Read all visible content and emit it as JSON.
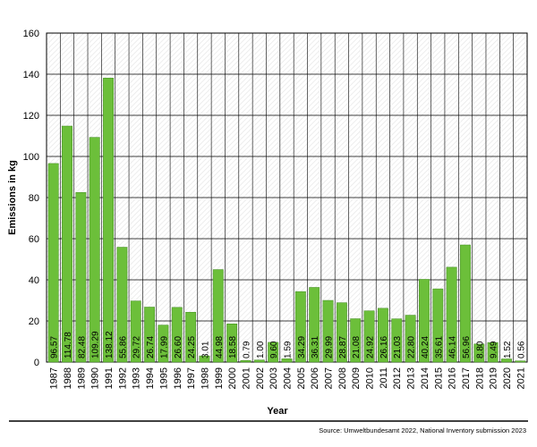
{
  "chart_data": {
    "type": "bar",
    "ylabel": "Emissions in kg",
    "xlabel": "Year",
    "ylim": [
      0,
      160
    ],
    "yticks": [
      0,
      20,
      40,
      60,
      80,
      100,
      120,
      140,
      160
    ],
    "grid": true,
    "categories": [
      "1987",
      "1988",
      "1989",
      "1990",
      "1991",
      "1992",
      "1993",
      "1994",
      "1995",
      "1996",
      "1997",
      "1998",
      "1999",
      "2000",
      "2001",
      "2002",
      "2003",
      "2004",
      "2005",
      "2006",
      "2007",
      "2008",
      "2009",
      "2010",
      "2011",
      "2012",
      "2013",
      "2014",
      "2015",
      "2016",
      "2017",
      "2018",
      "2019",
      "2020",
      "2021"
    ],
    "values": [
      96.57,
      114.78,
      82.48,
      109.29,
      138.12,
      55.86,
      29.72,
      26.74,
      17.99,
      26.6,
      24.25,
      3.01,
      44.98,
      18.58,
      0.79,
      1.0,
      9.6,
      1.59,
      34.29,
      36.31,
      29.99,
      28.87,
      21.08,
      24.92,
      26.16,
      21.03,
      22.8,
      40.24,
      35.61,
      46.14,
      56.96,
      8.8,
      9.49,
      1.52,
      0.56
    ],
    "data_labels": [
      "96.57",
      "114.78",
      "82.48",
      "109.29",
      "138.12",
      "55.86",
      "29.72",
      "26.74",
      "17.99",
      "26.60",
      "24.25",
      "3.01",
      "44.98",
      "18.58",
      "0.79",
      "1.00",
      "9.60",
      "1.59",
      "34.29",
      "36.31",
      "29.99",
      "28.87",
      "21.08",
      "24.92",
      "26.16",
      "21.03",
      "22.80",
      "40.24",
      "35.61",
      "46.14",
      "56.96",
      "8.80",
      "9.49",
      "1.52",
      "0.56"
    ],
    "bar_color": "#6cbf3a",
    "bar_edge_color": "#3d8a1c"
  },
  "source_note": "Source: Umweltbundesamt 2022, National Inventory submission 2023"
}
